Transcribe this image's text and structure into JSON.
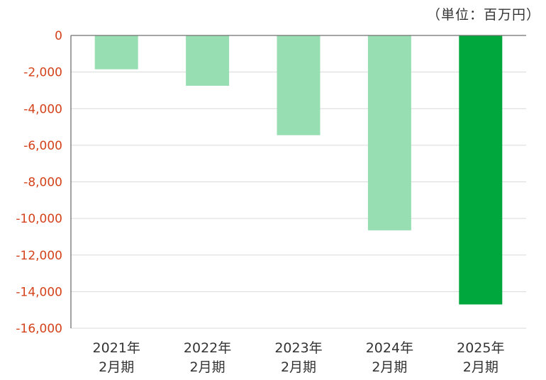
{
  "unit_note": "（単位：百万円）",
  "colors": {
    "bar_light": "#98DEB3",
    "bar_highlight": "#00A73C",
    "tick_label": "#D4421B",
    "grid": "#D9D9D9",
    "axis": "#6F6F6F",
    "category_label": "#333333"
  },
  "chart_data": {
    "type": "bar",
    "title": "",
    "xlabel": "",
    "ylabel": "",
    "categories": [
      [
        "2021年",
        "2月期"
      ],
      [
        "2022年",
        "2月期"
      ],
      [
        "2023年",
        "2月期"
      ],
      [
        "2024年",
        "2月期"
      ],
      [
        "2025年",
        "2月期"
      ]
    ],
    "values": [
      -1850,
      -2750,
      -5450,
      -10650,
      -14700
    ],
    "highlight_index": 4,
    "ylim": [
      -16000,
      0
    ],
    "yticks": [
      0,
      -2000,
      -4000,
      -6000,
      -8000,
      -10000,
      -12000,
      -14000,
      -16000
    ],
    "ytick_labels": [
      "0",
      "-2,000",
      "-4,000",
      "-6,000",
      "-8,000",
      "-10,000",
      "-12,000",
      "-14,000",
      "-16,000"
    ],
    "grid": true
  }
}
